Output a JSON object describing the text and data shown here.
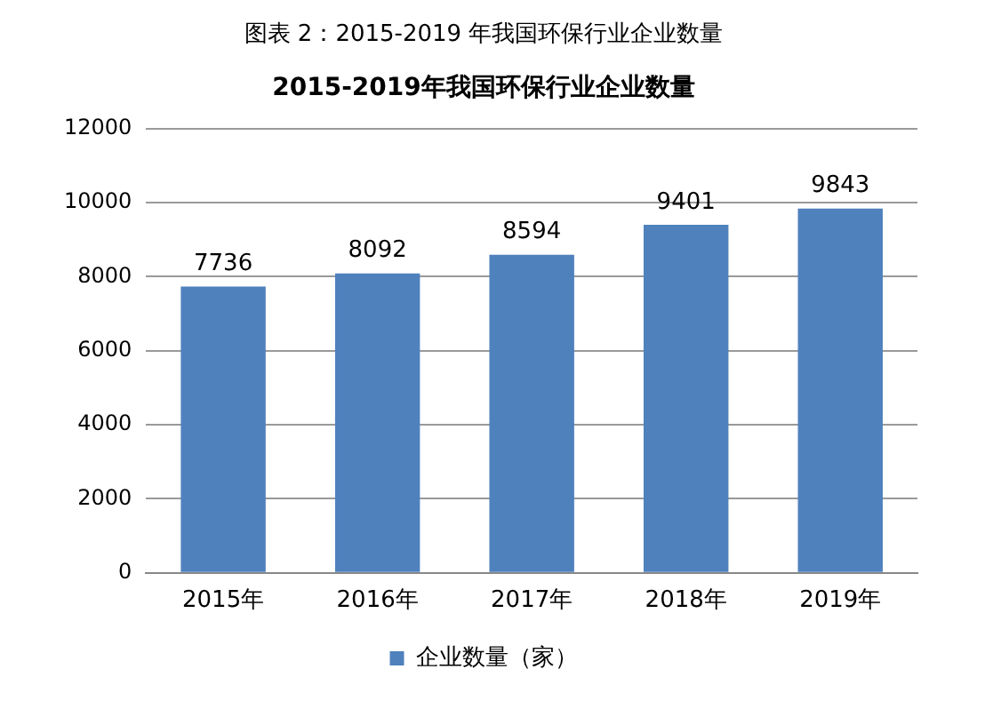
{
  "chart_data": {
    "type": "bar",
    "title": "图表 2：2015-2019 年我国环保行业企业数量",
    "subtitle": "2015-2019年我国环保行业企业数量",
    "categories": [
      "2015年",
      "2016年",
      "2017年",
      "2018年",
      "2019年"
    ],
    "series": [
      {
        "name": "企业数量（家）",
        "color": "#4f81bd",
        "values": [
          7736,
          8092,
          8594,
          9401,
          9843
        ]
      }
    ],
    "ylim": [
      0,
      12000
    ],
    "yticks": [
      0,
      2000,
      4000,
      6000,
      8000,
      10000,
      12000
    ],
    "grid": "y",
    "legend": "bottom",
    "data_labels": true
  }
}
